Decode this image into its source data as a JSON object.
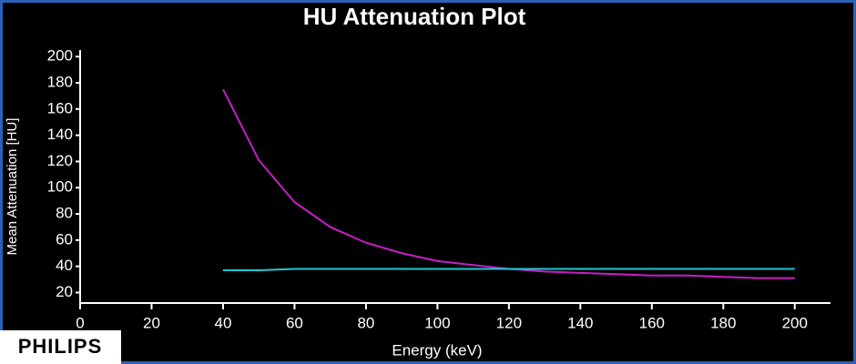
{
  "chart_data": {
    "type": "line",
    "title": "HU Attenuation Plot",
    "x_label": "Energy (keV)",
    "y_label": "Mean Attenuation [HU]",
    "watermark": "PHILIPS",
    "x": [
      40,
      50,
      60,
      70,
      80,
      90,
      100,
      110,
      120,
      130,
      140,
      150,
      160,
      170,
      180,
      190,
      200
    ],
    "series": [
      {
        "color": "#c81ec8",
        "values": [
          175,
          121,
          89,
          70,
          58,
          50,
          44,
          41,
          38,
          36,
          35,
          34,
          33,
          33,
          32,
          31,
          31
        ]
      },
      {
        "color": "#1ec8d2",
        "values": [
          37,
          37,
          38,
          38,
          38,
          38,
          38,
          38,
          38,
          38,
          38,
          38,
          38,
          38,
          38,
          38,
          38
        ]
      }
    ],
    "xlim": [
      0,
      210
    ],
    "xticks": [
      0,
      20,
      40,
      60,
      80,
      100,
      120,
      140,
      160,
      180,
      200
    ],
    "ylim": [
      12,
      205
    ],
    "yticks": [
      20,
      40,
      60,
      80,
      100,
      120,
      140,
      160,
      180,
      200
    ],
    "grid": false
  }
}
